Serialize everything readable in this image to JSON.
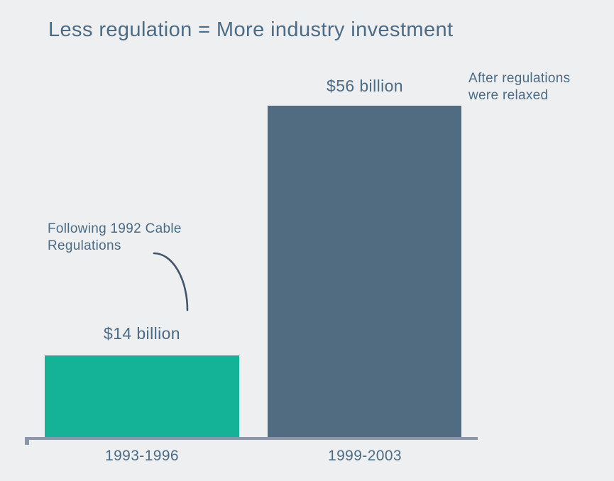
{
  "title": "Less regulation = More industry investment",
  "chart_data": {
    "type": "bar",
    "title": "Less regulation = More industry investment",
    "categories": [
      "1993-1996",
      "1999-2003"
    ],
    "values": [
      14,
      56
    ],
    "unit": "billion dollars",
    "value_labels": [
      "$14 billion",
      "$56 billion"
    ],
    "bar_colors": [
      "#14b398",
      "#516b80"
    ],
    "ylim": [
      0,
      56
    ],
    "grid": false,
    "legend": false,
    "xlabel": "",
    "ylabel": "",
    "axis_color": "#8b97a9",
    "text_color": "#4c6b85",
    "background_color": "#edeff1",
    "annotations": [
      {
        "text": "Following 1992 Cable Regulations",
        "target_category": "1993-1996"
      },
      {
        "text": "After regulations were relaxed",
        "target_category": "1999-2003"
      }
    ]
  }
}
